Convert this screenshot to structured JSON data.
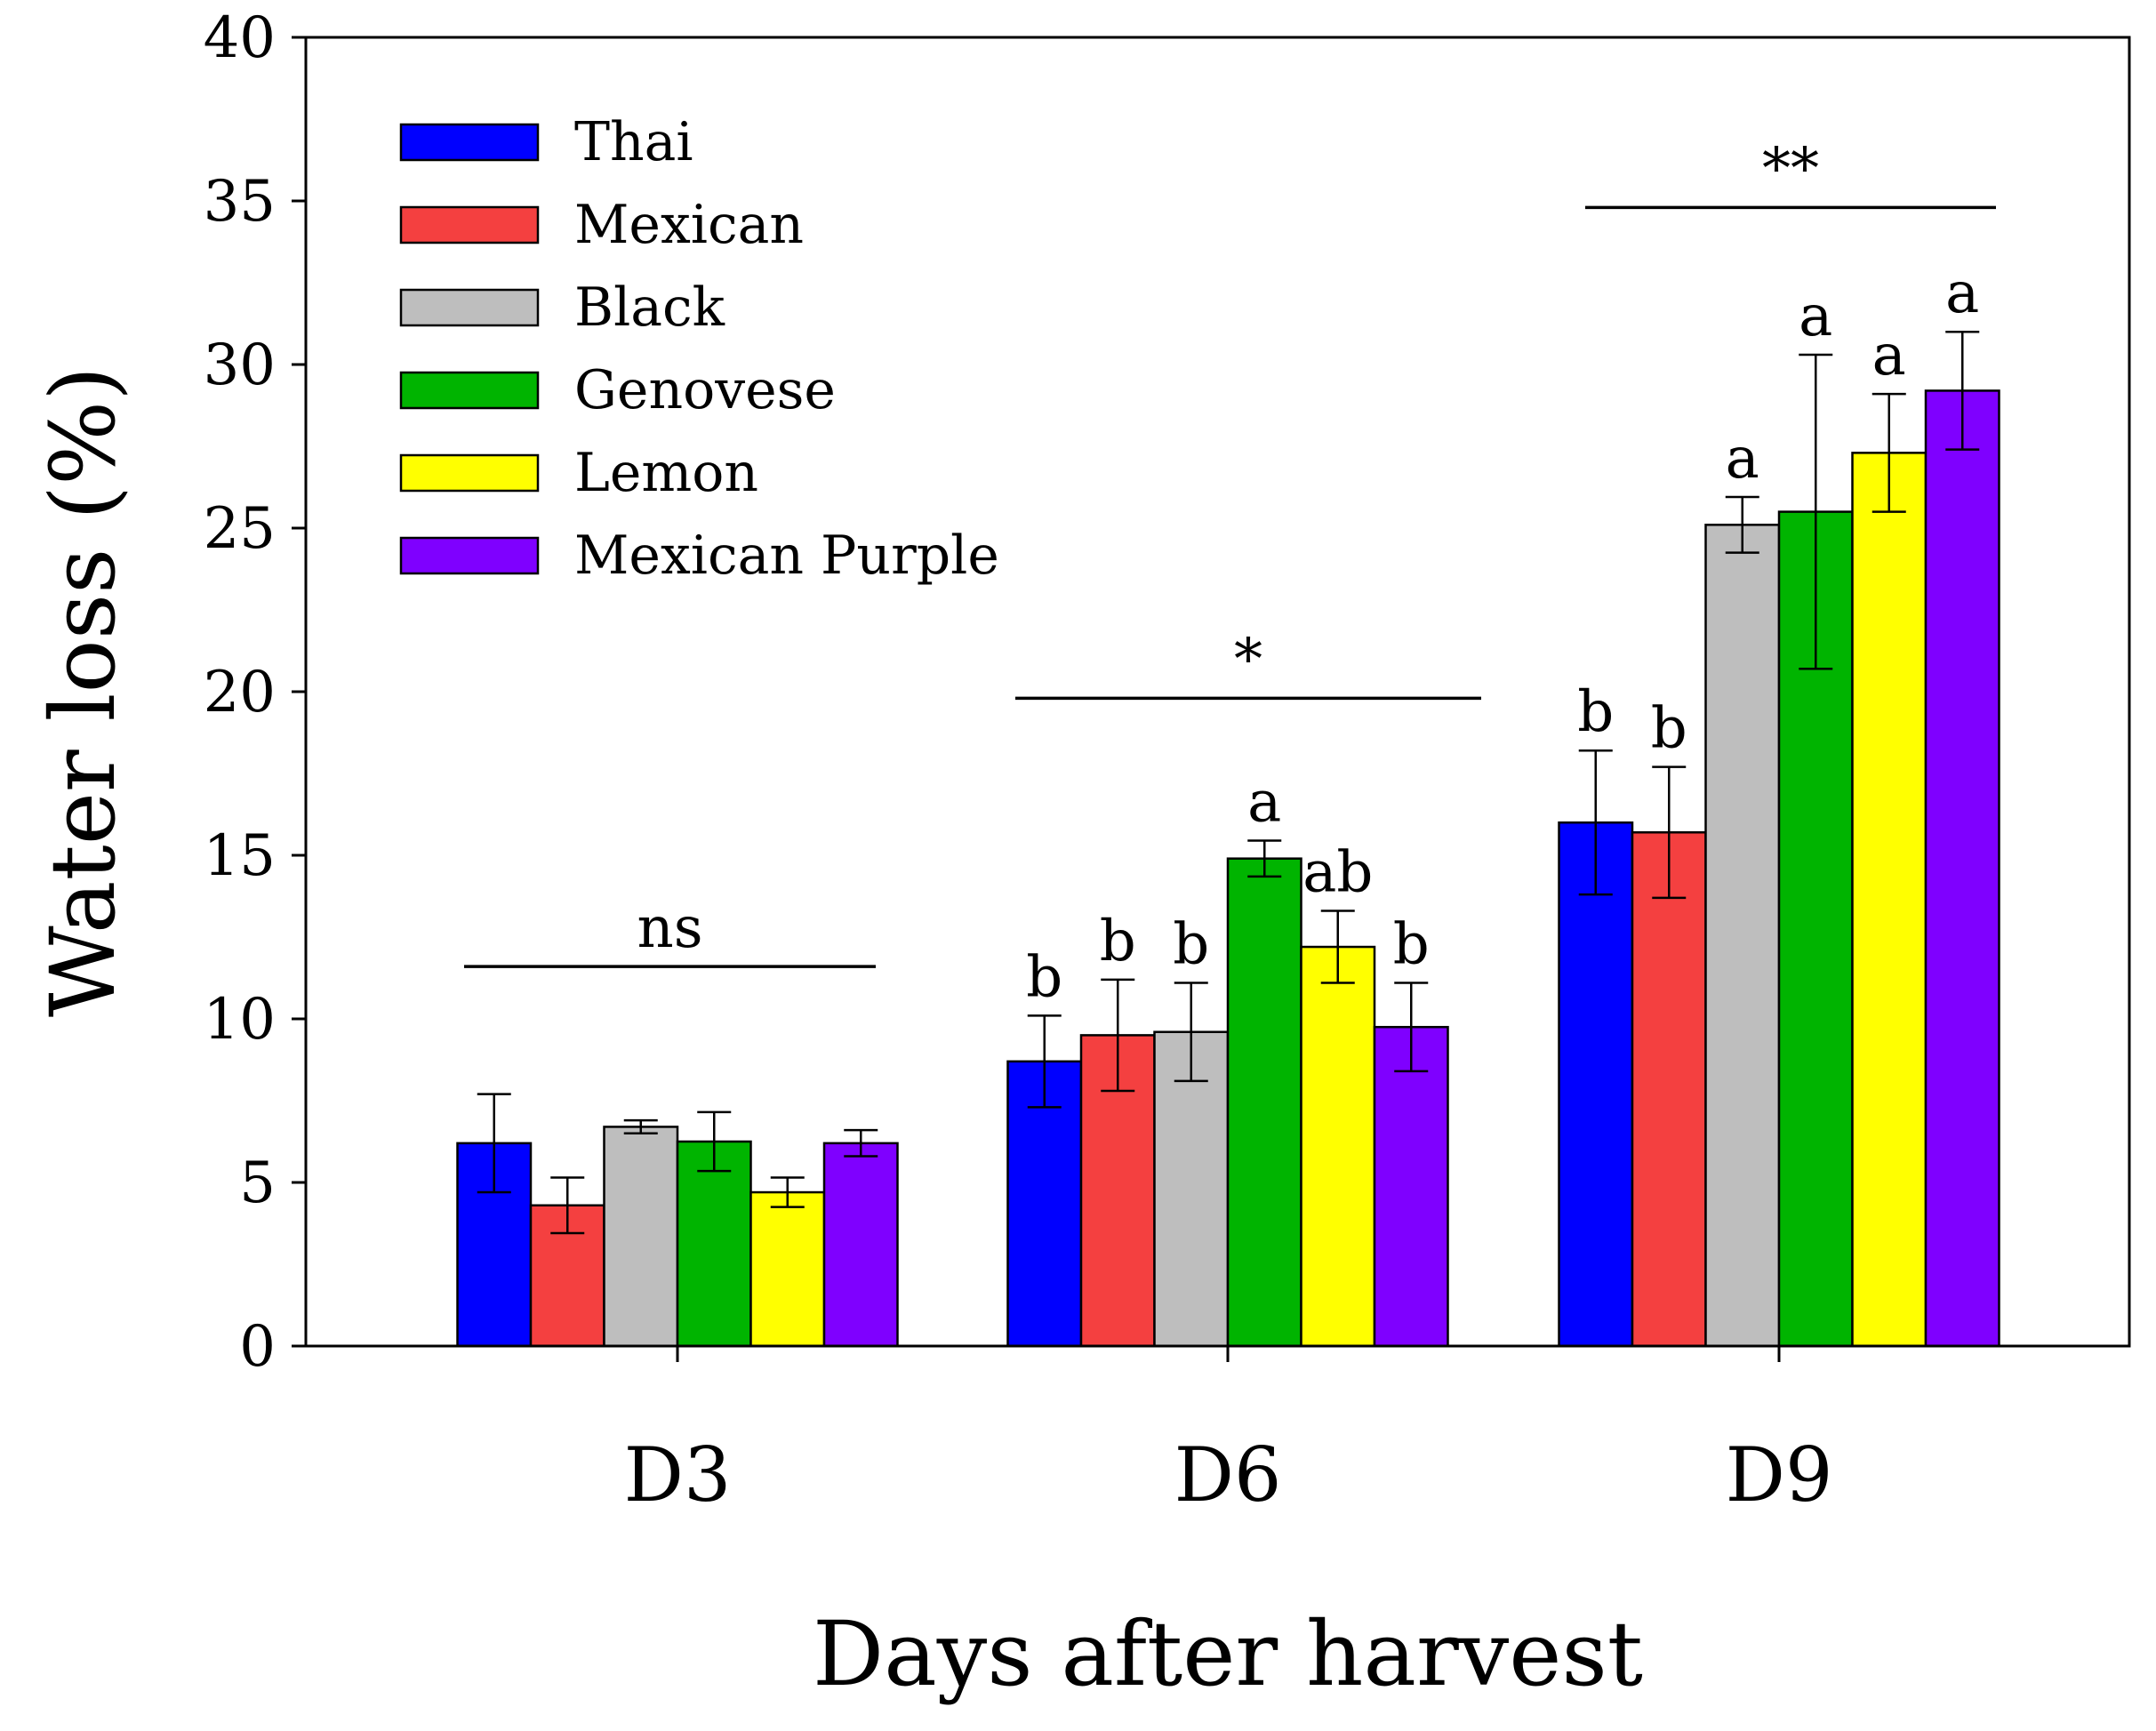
{
  "chart_data": {
    "type": "bar",
    "ylabel": "Water loss (%)",
    "xlabel": "Days after harvest",
    "ylim": [
      0,
      40
    ],
    "yticks": [
      0,
      5,
      10,
      15,
      20,
      25,
      30,
      35,
      40
    ],
    "grid": false,
    "legend_position": "top-left",
    "categories": [
      "D3",
      "D6",
      "D9"
    ],
    "series": [
      {
        "name": "Thai",
        "color": "#0000ff",
        "values": [
          6.2,
          8.7,
          16.0
        ],
        "errors": [
          1.5,
          1.4,
          2.2
        ]
      },
      {
        "name": "Mexican",
        "color": "#f44040",
        "values": [
          4.3,
          9.5,
          15.7
        ],
        "errors": [
          0.85,
          1.7,
          2.0
        ]
      },
      {
        "name": "Black",
        "color": "#bebebe",
        "values": [
          6.7,
          9.6,
          25.1
        ],
        "errors": [
          0.2,
          1.5,
          0.85
        ]
      },
      {
        "name": "Genovese",
        "color": "#00b400",
        "values": [
          6.25,
          14.9,
          25.5
        ],
        "errors": [
          0.9,
          0.55,
          4.8
        ]
      },
      {
        "name": "Lemon",
        "color": "#ffff00",
        "values": [
          4.7,
          12.2,
          27.3
        ],
        "errors": [
          0.45,
          1.1,
          1.8
        ]
      },
      {
        "name": "Mexican Purple",
        "color": "#7f00ff",
        "values": [
          6.2,
          9.75,
          29.2
        ],
        "errors": [
          0.4,
          1.35,
          1.8
        ]
      }
    ],
    "group_significance": [
      {
        "category": "D3",
        "label": "ns",
        "line_y": 11.6
      },
      {
        "category": "D6",
        "label": "*",
        "line_y": 19.8
      },
      {
        "category": "D9",
        "label": "**",
        "line_y": 34.8
      }
    ],
    "letters": [
      [
        "",
        "",
        "",
        "",
        "",
        ""
      ],
      [
        "b",
        "b",
        "b",
        "a",
        "ab",
        "b"
      ],
      [
        "b",
        "b",
        "a",
        "a",
        "a",
        "a"
      ]
    ]
  }
}
